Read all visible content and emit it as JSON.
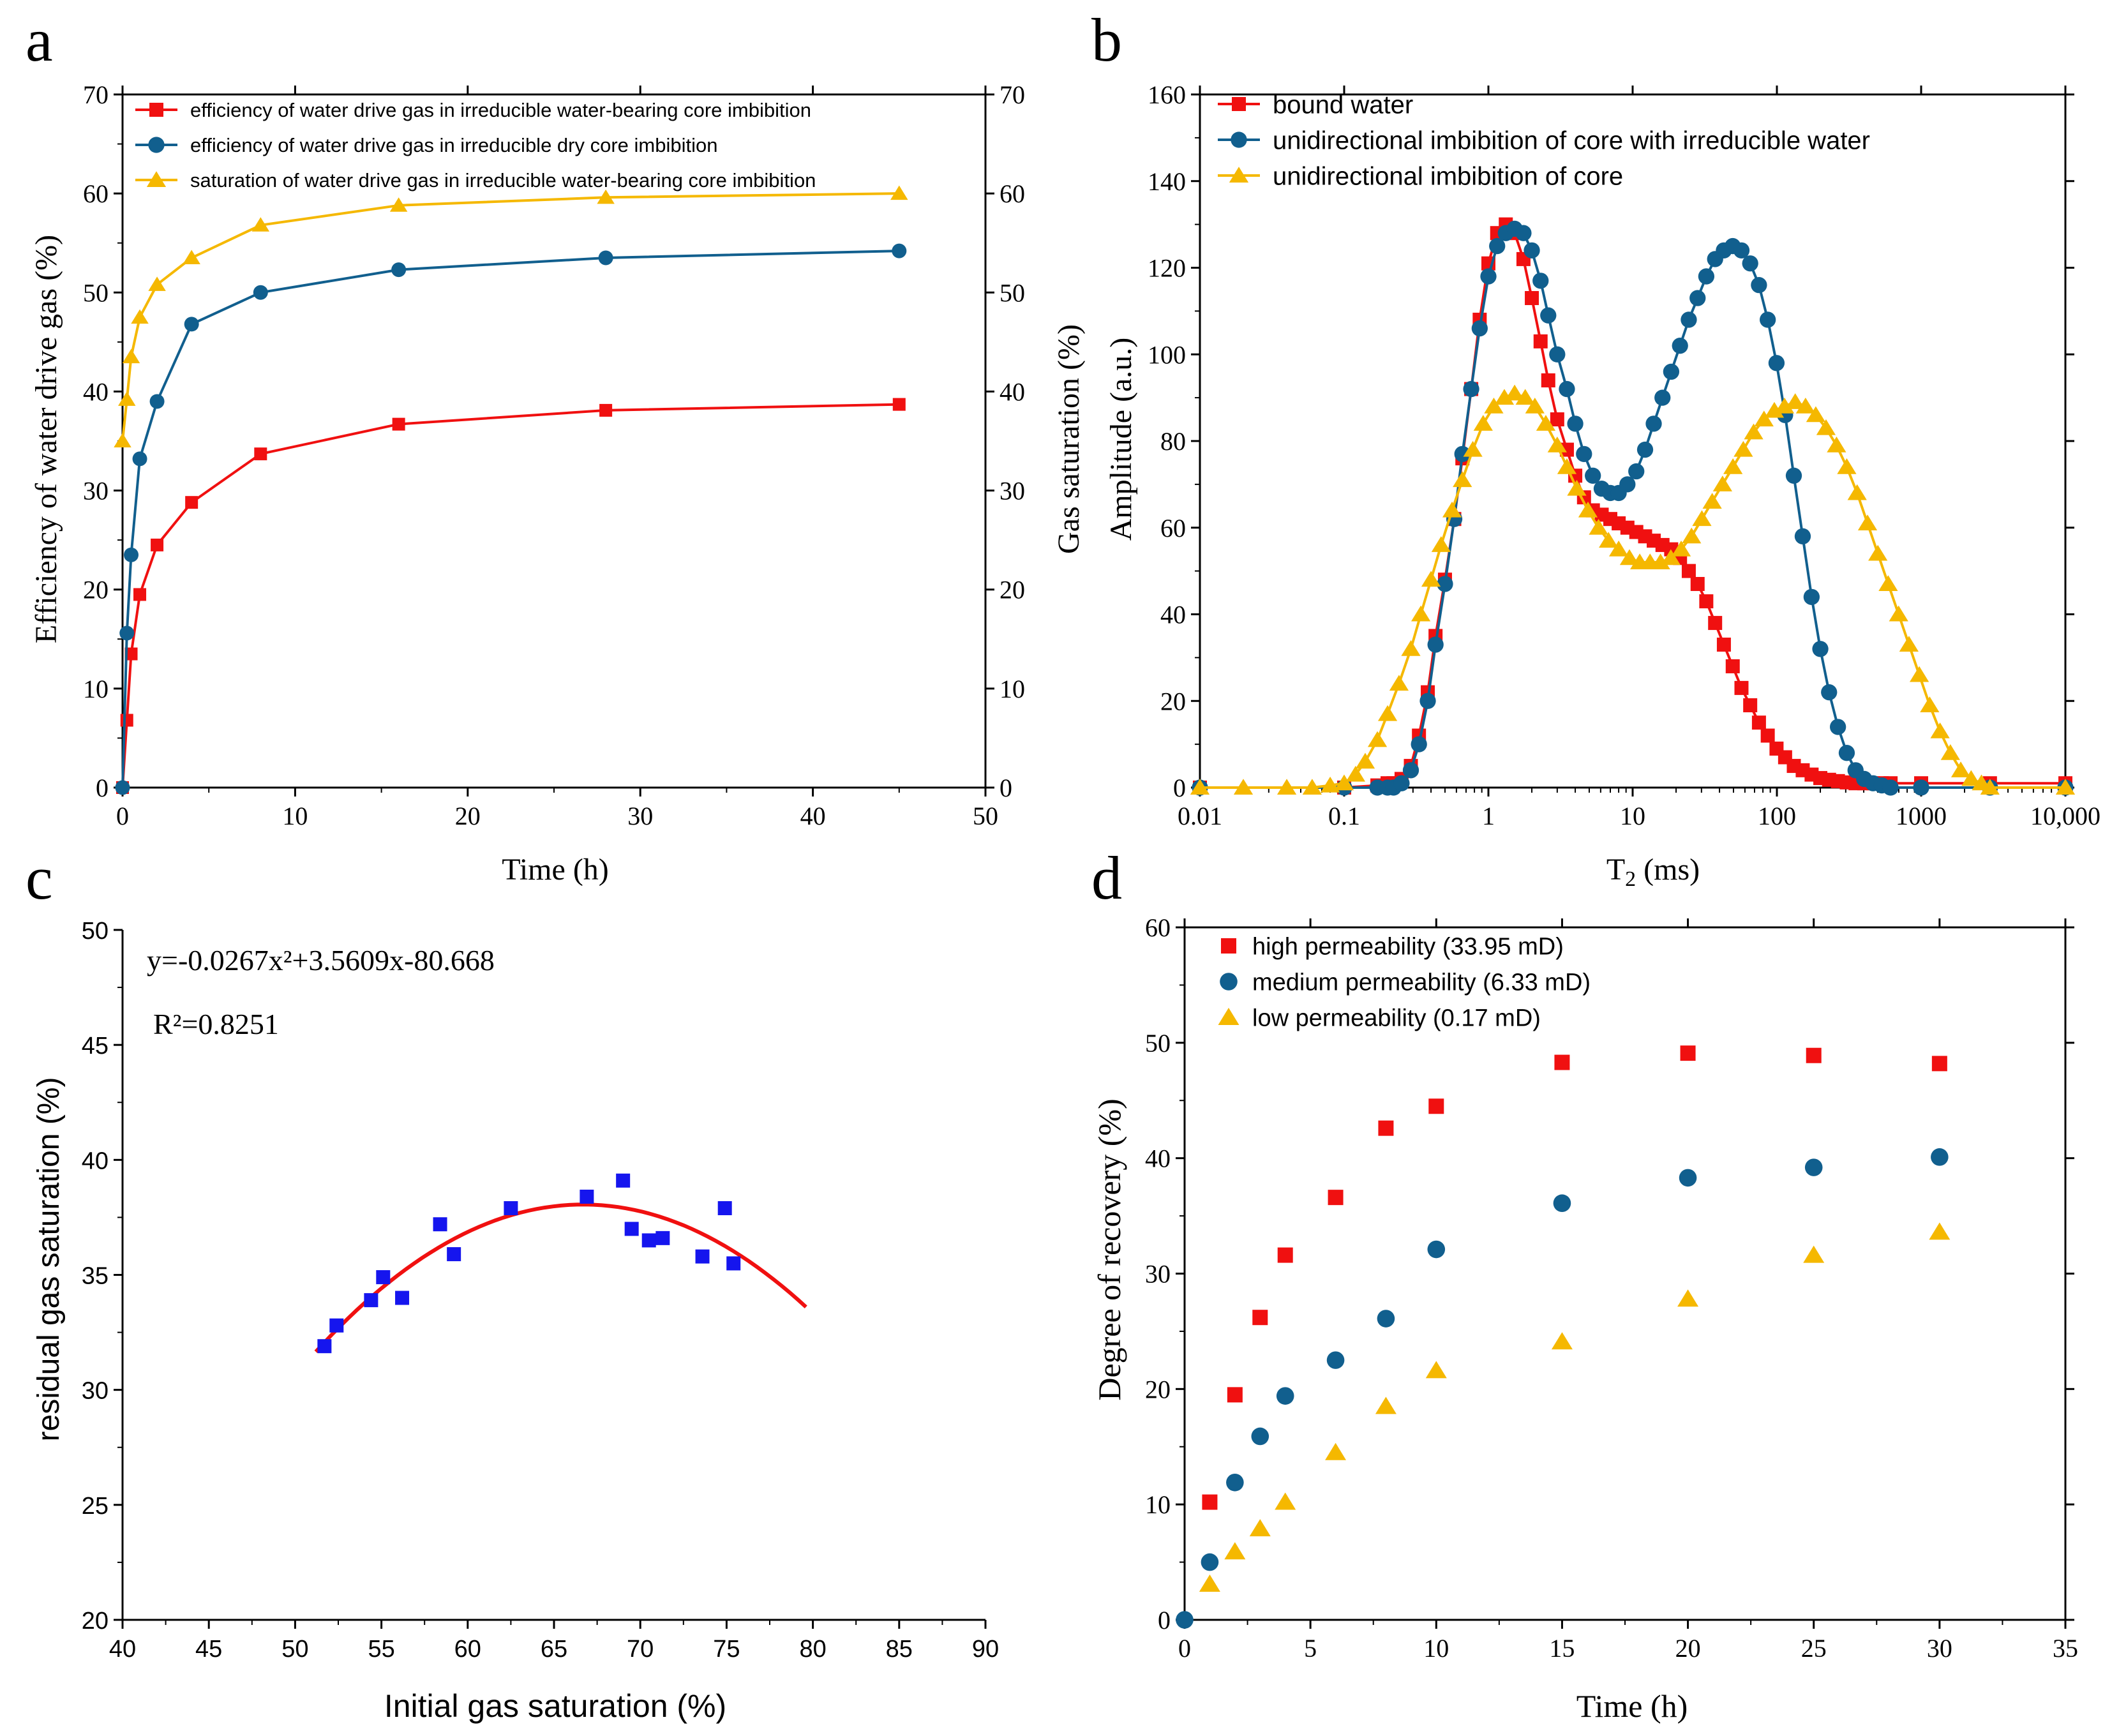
{
  "colors": {
    "red": "#f01010",
    "blue": "#115f8e",
    "yellow": "#f5b800",
    "pureblue": "#1515ee",
    "axis": "#000000"
  },
  "chart_data": [
    {
      "type": "line",
      "panel_label": "a",
      "xlabel": "Time (h)",
      "ylabel": "Efficiency of water drive gas (%)",
      "ylabel_right": "Gas saturation (%)",
      "xlim": [
        0,
        50
      ],
      "ylim": [
        0,
        70
      ],
      "ylim_right": [
        0,
        70
      ],
      "xticks": [
        "0",
        "10",
        "20",
        "30",
        "40",
        "50"
      ],
      "yticks": [
        "0",
        "10",
        "20",
        "30",
        "40",
        "50",
        "60",
        "70"
      ],
      "legend_position": "top-left",
      "series": [
        {
          "name": "efficiency of water drive gas in irreducible water-bearing core imbibition",
          "color": "red",
          "marker": "square",
          "x": [
            0,
            0.25,
            0.5,
            1,
            2,
            4,
            8,
            16,
            28,
            45
          ],
          "y": [
            0,
            6.8,
            13.5,
            19.5,
            24.5,
            28.8,
            33.7,
            36.7,
            38.1,
            38.7
          ]
        },
        {
          "name": "efficiency of water drive gas in irreducible dry core imbibition",
          "color": "blue",
          "marker": "circle",
          "x": [
            0,
            0.25,
            0.5,
            1,
            2,
            4,
            8,
            16,
            28,
            45
          ],
          "y": [
            0,
            15.6,
            23.5,
            33.2,
            39.0,
            46.8,
            50.0,
            52.3,
            53.5,
            54.2
          ]
        },
        {
          "name": "saturation of water drive gas in irreducible water-bearing core imbibition",
          "color": "yellow",
          "marker": "triangle",
          "x": [
            0,
            0.25,
            0.5,
            1,
            2,
            4,
            8,
            16,
            28,
            45
          ],
          "y": [
            35.0,
            39.2,
            43.5,
            47.5,
            50.8,
            53.5,
            56.8,
            58.8,
            59.6,
            60.0
          ]
        }
      ]
    },
    {
      "type": "line",
      "panel_label": "b",
      "xlabel": "T",
      "xlabel_sub": "2",
      "xlabel_tail": " (ms)",
      "ylabel": "Amplitude (a.u.)",
      "xscale": "log",
      "xlim": [
        0.01,
        10000
      ],
      "ylim": [
        0,
        160
      ],
      "xticks": [
        "0.01",
        "0.1",
        "1",
        "10",
        "100",
        "1000",
        "10,000"
      ],
      "yticks": [
        "0",
        "20",
        "40",
        "60",
        "80",
        "100",
        "120",
        "140",
        "160"
      ],
      "legend_position": "top-left",
      "series": [
        {
          "name": "bound water",
          "color": "red",
          "marker": "square",
          "x": [
            0.01,
            0.1,
            0.17,
            0.2,
            0.22,
            0.25,
            0.29,
            0.33,
            0.38,
            0.43,
            0.5,
            0.58,
            0.66,
            0.76,
            0.87,
            1.0,
            1.15,
            1.32,
            1.52,
            1.75,
            2.0,
            2.3,
            2.6,
            3.0,
            3.5,
            4.0,
            4.6,
            5.3,
            6.1,
            7.0,
            8.0,
            9.2,
            10.6,
            12.2,
            14.0,
            16.1,
            18.5,
            21.3,
            24.5,
            28.2,
            32.4,
            37.3,
            42.9,
            49.4,
            56.8,
            65.3,
            75.1,
            86.4,
            99.4,
            114,
            131,
            151,
            174,
            200,
            230,
            265,
            305,
            351,
            403,
            464,
            534,
            614,
            1000,
            3000,
            10000
          ],
          "y": [
            0,
            0,
            0.5,
            1,
            1,
            2,
            5,
            12,
            22,
            35,
            48,
            62,
            76,
            92,
            108,
            121,
            128,
            130,
            128,
            122,
            113,
            103,
            94,
            85,
            78,
            72,
            67,
            64,
            63,
            62,
            61,
            60,
            59,
            58,
            57,
            56,
            55,
            53,
            50,
            47,
            43,
            38,
            33,
            28,
            23,
            19,
            15,
            12,
            9,
            7,
            5,
            4,
            3,
            2.2,
            1.8,
            1.5,
            1.2,
            1,
            1,
            1,
            1,
            1,
            1,
            1,
            1
          ]
        },
        {
          "name": "unidirectional imbibition of core with irreducible water",
          "color": "blue",
          "marker": "circle",
          "x": [
            0.01,
            0.1,
            0.17,
            0.2,
            0.22,
            0.25,
            0.29,
            0.33,
            0.38,
            0.43,
            0.5,
            0.58,
            0.66,
            0.76,
            0.87,
            1.0,
            1.15,
            1.32,
            1.52,
            1.75,
            2.0,
            2.3,
            2.6,
            3.0,
            3.5,
            4.0,
            4.6,
            5.3,
            6.1,
            7.0,
            8.0,
            9.2,
            10.6,
            12.2,
            14.0,
            16.1,
            18.5,
            21.3,
            24.5,
            28.2,
            32.4,
            37.3,
            42.9,
            49.4,
            56.8,
            65.3,
            75.1,
            86.4,
            99.4,
            114,
            131,
            151,
            174,
            200,
            230,
            265,
            305,
            351,
            403,
            464,
            534,
            614,
            1000,
            3000,
            10000
          ],
          "y": [
            0,
            0,
            0,
            0,
            0,
            1,
            4,
            10,
            20,
            33,
            47,
            62,
            77,
            92,
            106,
            118,
            125,
            128,
            129,
            128,
            124,
            117,
            109,
            100,
            92,
            84,
            77,
            72,
            69,
            68,
            68,
            70,
            73,
            78,
            84,
            90,
            96,
            102,
            108,
            113,
            118,
            122,
            124,
            125,
            124,
            121,
            116,
            108,
            98,
            86,
            72,
            58,
            44,
            32,
            22,
            14,
            8,
            4,
            2,
            1,
            0.5,
            0,
            0,
            0,
            0
          ]
        },
        {
          "name": "unidirectional imbibition of core",
          "color": "yellow",
          "marker": "triangle",
          "x": [
            0.01,
            0.02,
            0.04,
            0.06,
            0.08,
            0.1,
            0.12,
            0.14,
            0.17,
            0.2,
            0.24,
            0.29,
            0.34,
            0.4,
            0.47,
            0.56,
            0.66,
            0.78,
            0.92,
            1.09,
            1.29,
            1.52,
            1.8,
            2.1,
            2.5,
            3.0,
            3.5,
            4.1,
            4.9,
            5.8,
            6.8,
            8.0,
            9.5,
            11.2,
            13.2,
            15.6,
            18.4,
            21.7,
            25.6,
            30.2,
            35.6,
            42.0,
            49.6,
            58.5,
            69.0,
            81.4,
            96.0,
            113,
            134,
            158,
            186,
            219,
            259,
            305,
            360,
            425,
            501,
            591,
            698,
            823,
            971,
            1146,
            1352,
            1595,
            1882,
            2221,
            2620,
            3000,
            10000
          ],
          "y": [
            0,
            0,
            0,
            0,
            0.5,
            1,
            3,
            6,
            11,
            17,
            24,
            32,
            40,
            48,
            56,
            64,
            71,
            78,
            84,
            88,
            90,
            91,
            90,
            88,
            84,
            79,
            74,
            69,
            64,
            60,
            57,
            55,
            53,
            52,
            52,
            52,
            53,
            55,
            58,
            62,
            66,
            70,
            74,
            78,
            82,
            85,
            87,
            88,
            89,
            88,
            86,
            83,
            79,
            74,
            68,
            61,
            54,
            47,
            40,
            33,
            26,
            19,
            13,
            8,
            4,
            2,
            1,
            0,
            0
          ]
        }
      ]
    },
    {
      "type": "scatter",
      "panel_label": "c",
      "xlabel": "Initial gas saturation (%)",
      "ylabel": "residual gas saturation (%)",
      "xlim": [
        40,
        90
      ],
      "ylim": [
        20,
        50
      ],
      "xticks": [
        "40",
        "45",
        "50",
        "55",
        "60",
        "65",
        "70",
        "75",
        "80",
        "85",
        "90"
      ],
      "yticks": [
        "20",
        "25",
        "30",
        "35",
        "40",
        "45",
        "50"
      ],
      "equation": "y=-0.0267x²+3.5609x-80.668",
      "r2": "R²=0.8251",
      "points": {
        "x": [
          51.7,
          52.4,
          54.4,
          55.1,
          56.2,
          58.4,
          59.2,
          62.5,
          66.9,
          69.0,
          69.5,
          70.5,
          71.3,
          73.6,
          74.9,
          75.4
        ],
        "y": [
          31.9,
          32.8,
          33.9,
          34.9,
          34.0,
          37.2,
          35.9,
          37.9,
          38.4,
          39.1,
          37.0,
          36.5,
          36.6,
          35.8,
          37.9,
          35.5
        ]
      },
      "fit": {
        "a": -0.0267,
        "b": 3.5609,
        "c": -80.668,
        "x_from": 51.2,
        "x_to": 79.6
      }
    },
    {
      "type": "scatter",
      "panel_label": "d",
      "xlabel": "Time (h)",
      "ylabel": "Degree of recovery (%)",
      "xlim": [
        0,
        35
      ],
      "ylim": [
        0,
        60
      ],
      "xticks": [
        "0",
        "5",
        "10",
        "15",
        "20",
        "25",
        "30",
        "35"
      ],
      "yticks": [
        "0",
        "10",
        "20",
        "30",
        "40",
        "50",
        "60"
      ],
      "legend_position": "top-left",
      "series": [
        {
          "name": "high permeability (33.95 mD)",
          "color": "red",
          "marker": "square",
          "x": [
            1,
            2,
            3,
            4,
            6,
            8,
            10,
            15,
            20,
            25,
            30
          ],
          "y": [
            10.2,
            19.5,
            26.2,
            31.6,
            36.6,
            42.6,
            44.5,
            48.3,
            49.1,
            48.9,
            48.2
          ]
        },
        {
          "name": "medium permeability (6.33 mD)",
          "color": "blue",
          "marker": "circle",
          "x": [
            0,
            1,
            2,
            3,
            4,
            6,
            8,
            10,
            15,
            20,
            25,
            30
          ],
          "y": [
            0,
            5.0,
            11.9,
            15.9,
            19.4,
            22.5,
            26.1,
            32.1,
            36.1,
            38.3,
            39.2,
            40.1
          ]
        },
        {
          "name": "low permeability (0.17 mD)",
          "color": "yellow",
          "marker": "triangle",
          "x": [
            1,
            2,
            3,
            4,
            6,
            8,
            10,
            15,
            20,
            25,
            30
          ],
          "y": [
            3.1,
            5.9,
            7.9,
            10.2,
            14.5,
            18.5,
            21.6,
            24.1,
            27.8,
            31.6,
            33.6
          ]
        }
      ]
    }
  ]
}
